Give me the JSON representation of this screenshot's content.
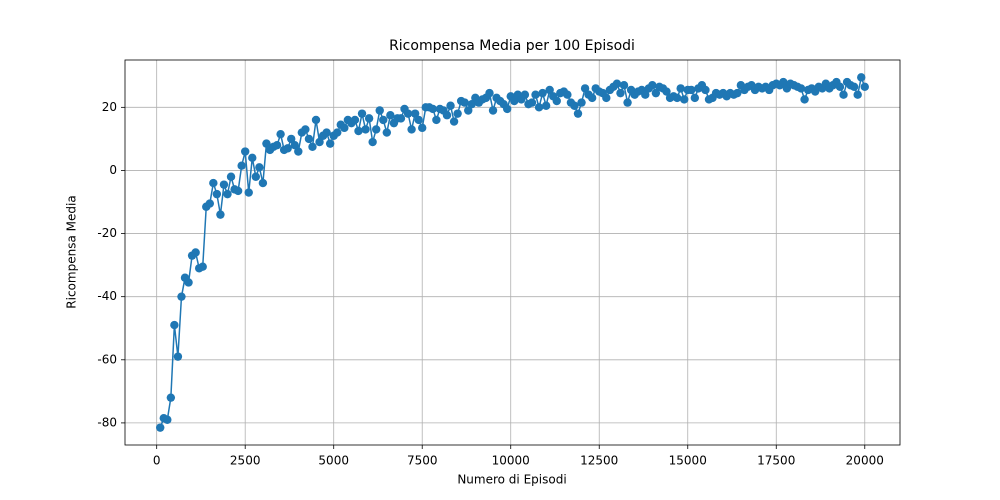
{
  "chart_data": {
    "type": "line",
    "title": "Ricompensa Media per 100 Episodi",
    "xlabel": "Numero di Episodi",
    "ylabel": "Ricompensa Media",
    "x": [
      100,
      200,
      300,
      400,
      500,
      600,
      700,
      800,
      900,
      1000,
      1100,
      1200,
      1300,
      1400,
      1500,
      1600,
      1700,
      1800,
      1900,
      2000,
      2100,
      2200,
      2300,
      2400,
      2500,
      2600,
      2700,
      2800,
      2900,
      3000,
      3100,
      3200,
      3300,
      3400,
      3500,
      3600,
      3700,
      3800,
      3900,
      4000,
      4100,
      4200,
      4300,
      4400,
      4500,
      4600,
      4700,
      4800,
      4900,
      5000,
      5100,
      5200,
      5300,
      5400,
      5500,
      5600,
      5700,
      5800,
      5900,
      6000,
      6100,
      6200,
      6300,
      6400,
      6500,
      6600,
      6700,
      6800,
      6900,
      7000,
      7100,
      7200,
      7300,
      7400,
      7500,
      7600,
      7700,
      7800,
      7900,
      8000,
      8100,
      8200,
      8300,
      8400,
      8500,
      8600,
      8700,
      8800,
      8900,
      9000,
      9100,
      9200,
      9300,
      9400,
      9500,
      9600,
      9700,
      9800,
      9900,
      10000,
      10100,
      10200,
      10300,
      10400,
      10500,
      10600,
      10700,
      10800,
      10900,
      11000,
      11100,
      11200,
      11300,
      11400,
      11500,
      11600,
      11700,
      11800,
      11900,
      12000,
      12100,
      12200,
      12300,
      12400,
      12500,
      12600,
      12700,
      12800,
      12900,
      13000,
      13100,
      13200,
      13300,
      13400,
      13500,
      13600,
      13700,
      13800,
      13900,
      14000,
      14100,
      14200,
      14300,
      14400,
      14500,
      14600,
      14700,
      14800,
      14900,
      15000,
      15100,
      15200,
      15300,
      15400,
      15500,
      15600,
      15700,
      15800,
      15900,
      16000,
      16100,
      16200,
      16300,
      16400,
      16500,
      16600,
      16700,
      16800,
      16900,
      17000,
      17100,
      17200,
      17300,
      17400,
      17500,
      17600,
      17700,
      17800,
      17900,
      18000,
      18100,
      18200,
      18300,
      18400,
      18500,
      18600,
      18700,
      18800,
      18900,
      19000,
      19100,
      19200,
      19300,
      19400,
      19500,
      19600,
      19700,
      19800,
      19900,
      20000
    ],
    "series": [
      {
        "color": "#1f77b4",
        "values": [
          -81.5,
          -78.5,
          -79,
          -72,
          -49,
          -59,
          -40,
          -34,
          -35.5,
          -27,
          -26,
          -31,
          -30.5,
          -11.5,
          -10.5,
          -4,
          -7.5,
          -14,
          -4.5,
          -7.5,
          -2,
          -6,
          -6.5,
          1.5,
          6,
          -7,
          4,
          -2,
          1,
          -4,
          8.5,
          6.5,
          7.5,
          8,
          11.5,
          6.5,
          7,
          10,
          8,
          6,
          12,
          13,
          10,
          7.5,
          16,
          9,
          11,
          12,
          8.5,
          11,
          12,
          14.5,
          13.5,
          16,
          15,
          16,
          12.5,
          18,
          13,
          16.5,
          9,
          13,
          19,
          16,
          12,
          17.5,
          15,
          16.5,
          16.5,
          19.5,
          18,
          13,
          18,
          16,
          13.5,
          20,
          20,
          19.5,
          16,
          19.5,
          19,
          17.5,
          20.5,
          15.5,
          18,
          22,
          21.5,
          19,
          21,
          23,
          21.5,
          22.5,
          23,
          24.5,
          19,
          23,
          22,
          21,
          19.5,
          23.5,
          22,
          24,
          22.5,
          24,
          21,
          21.5,
          24,
          20,
          24.5,
          20.5,
          25.5,
          23.5,
          22,
          24.5,
          25,
          24,
          21.5,
          20.5,
          18,
          21.5,
          26,
          24,
          23,
          26,
          25,
          24.5,
          23,
          25.5,
          26.5,
          27.5,
          24.5,
          27,
          21.5,
          25.5,
          24,
          25,
          25.5,
          24,
          26,
          27,
          24.5,
          26.5,
          26,
          25,
          23,
          23.5,
          23,
          26,
          22.5,
          25.5,
          25.5,
          23,
          26,
          27,
          25.5,
          22.5,
          23,
          24.5,
          24,
          24.5,
          23.5,
          24.5,
          24,
          24.5,
          27,
          25.5,
          26.5,
          27,
          25.5,
          26.5,
          26,
          26.5,
          25.5,
          27,
          27.5,
          27,
          28,
          26,
          27.5,
          27,
          26.5,
          26,
          22.5,
          25.5,
          26,
          25,
          26.5,
          26,
          27.5,
          26,
          27,
          28,
          26.5,
          24,
          28,
          27,
          26.5,
          24,
          29.5,
          26.5
        ]
      }
    ],
    "xlim": [
      -895,
      20995
    ],
    "ylim": [
      -87,
      35
    ],
    "xticks": [
      0,
      2500,
      5000,
      7500,
      10000,
      12500,
      15000,
      17500,
      20000
    ],
    "yticks": [
      -80,
      -60,
      -40,
      -20,
      0,
      20
    ],
    "grid": true
  }
}
